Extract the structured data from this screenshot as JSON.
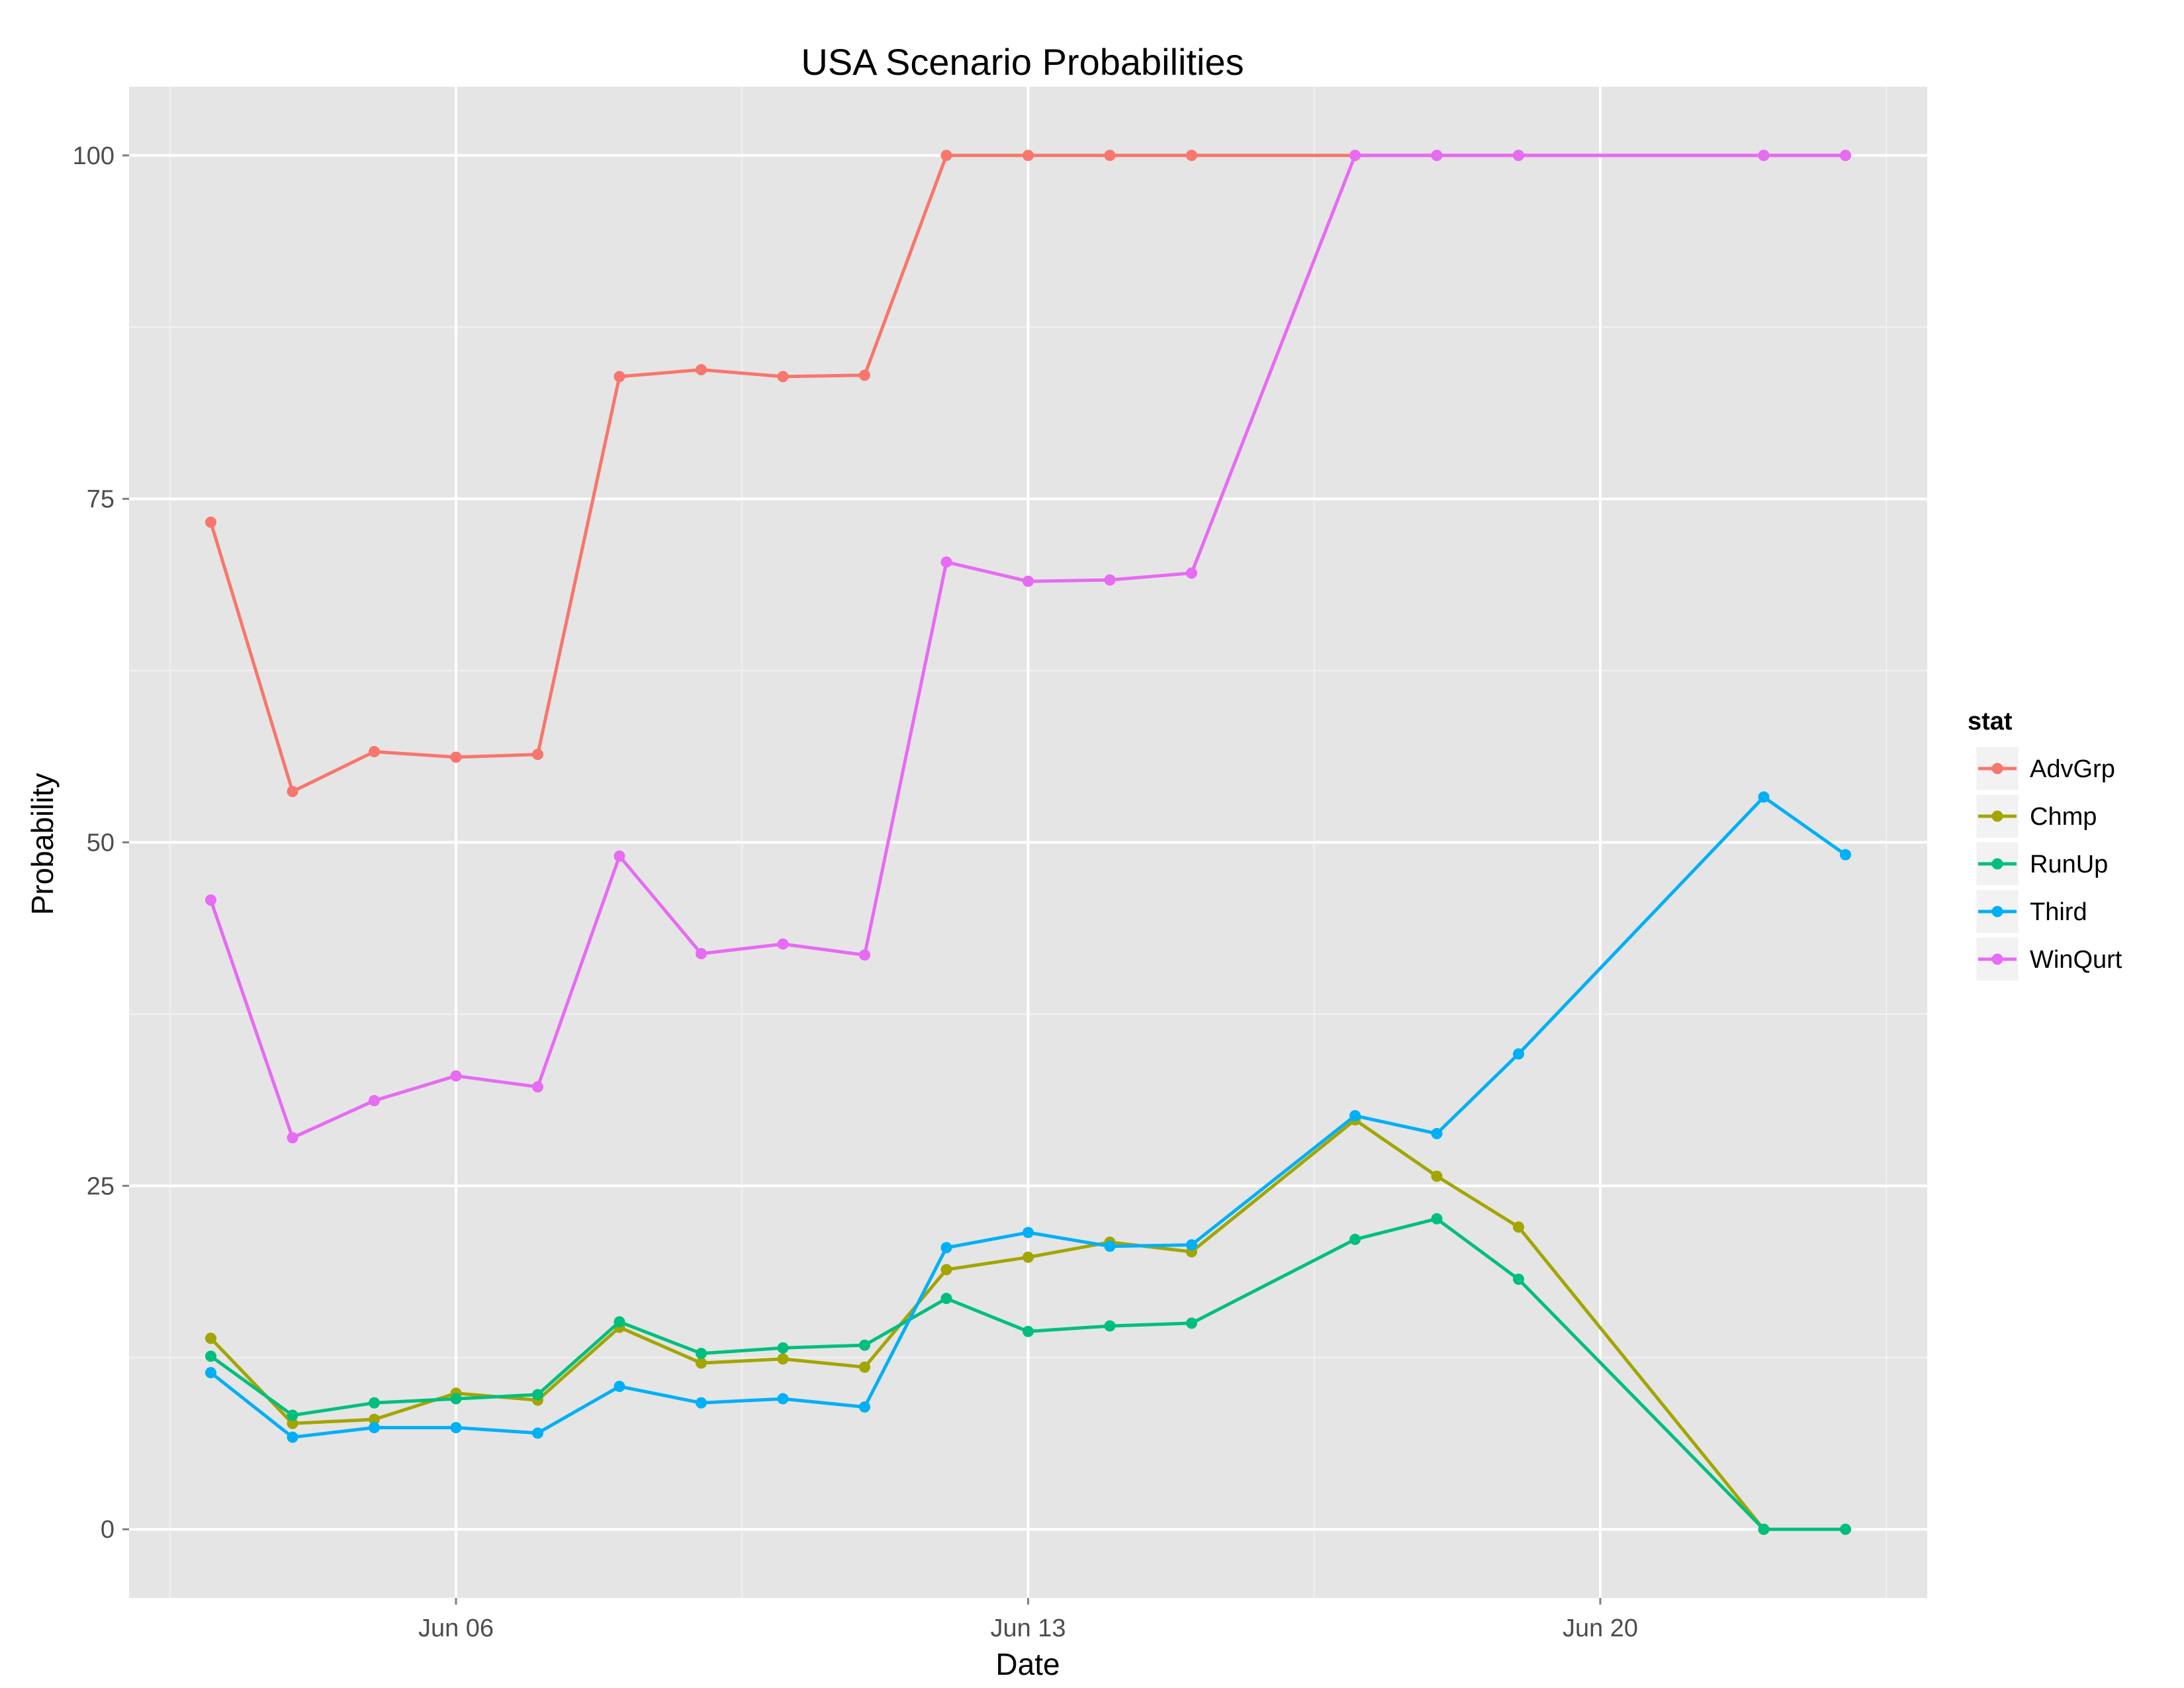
{
  "chart_data": {
    "type": "line",
    "title": "USA Scenario Probabilities",
    "xlabel": "Date",
    "ylabel": "Probability",
    "x_ticks": [
      "Jun 06",
      "Jun 13",
      "Jun 20"
    ],
    "x_tick_dates": [
      "2014-06-06",
      "2014-06-13",
      "2014-06-20"
    ],
    "xlim": [
      "2014-06-02",
      "2014-06-24"
    ],
    "y_ticks": [
      "0",
      "25",
      "50",
      "75",
      "100"
    ],
    "ylim": [
      -5,
      105
    ],
    "grid": true,
    "points_marked": true,
    "legend_title": "stat",
    "legend_position": "right",
    "series": [
      {
        "name": "AdvGrp",
        "color": "#F8766D",
        "x": [
          "2014-06-03",
          "2014-06-04",
          "2014-06-05",
          "2014-06-06",
          "2014-06-07",
          "2014-06-08",
          "2014-06-09",
          "2014-06-10",
          "2014-06-11",
          "2014-06-12",
          "2014-06-13",
          "2014-06-14",
          "2014-06-15",
          "2014-06-17",
          "2014-06-18",
          "2014-06-19",
          "2014-06-22",
          "2014-06-23"
        ],
        "y": [
          73.3,
          53.7,
          56.6,
          56.2,
          56.4,
          83.9,
          84.4,
          83.9,
          84.0,
          100,
          100,
          100,
          100,
          100,
          100,
          100,
          100,
          100
        ]
      },
      {
        "name": "Chmp",
        "color": "#A3A500",
        "x": [
          "2014-06-03",
          "2014-06-04",
          "2014-06-05",
          "2014-06-06",
          "2014-06-07",
          "2014-06-08",
          "2014-06-09",
          "2014-06-10",
          "2014-06-11",
          "2014-06-12",
          "2014-06-13",
          "2014-06-14",
          "2014-06-15",
          "2014-06-17",
          "2014-06-18",
          "2014-06-19",
          "2014-06-22"
        ],
        "y": [
          13.9,
          7.7,
          8.0,
          9.9,
          9.4,
          14.7,
          12.1,
          12.4,
          11.8,
          18.9,
          19.8,
          20.9,
          20.2,
          29.8,
          25.7,
          22.0,
          0
        ]
      },
      {
        "name": "RunUp",
        "color": "#00BF7D",
        "x": [
          "2014-06-03",
          "2014-06-04",
          "2014-06-05",
          "2014-06-06",
          "2014-06-07",
          "2014-06-08",
          "2014-06-09",
          "2014-06-10",
          "2014-06-11",
          "2014-06-12",
          "2014-06-13",
          "2014-06-14",
          "2014-06-15",
          "2014-06-17",
          "2014-06-18",
          "2014-06-19",
          "2014-06-22",
          "2014-06-23"
        ],
        "y": [
          12.6,
          8.3,
          9.2,
          9.5,
          9.8,
          15.1,
          12.8,
          13.2,
          13.4,
          16.8,
          14.4,
          14.8,
          15.0,
          21.1,
          22.6,
          18.2,
          0,
          0
        ]
      },
      {
        "name": "Third",
        "color": "#00B0F6",
        "x": [
          "2014-06-03",
          "2014-06-04",
          "2014-06-05",
          "2014-06-06",
          "2014-06-07",
          "2014-06-08",
          "2014-06-09",
          "2014-06-10",
          "2014-06-11",
          "2014-06-12",
          "2014-06-13",
          "2014-06-14",
          "2014-06-15",
          "2014-06-17",
          "2014-06-18",
          "2014-06-19",
          "2014-06-22",
          "2014-06-23"
        ],
        "y": [
          11.4,
          6.7,
          7.4,
          7.4,
          7.0,
          10.4,
          9.2,
          9.5,
          8.9,
          20.5,
          21.6,
          20.6,
          20.7,
          30.1,
          28.8,
          34.6,
          53.3,
          49.1
        ]
      },
      {
        "name": "WinQurt",
        "color": "#E76BF3",
        "x": [
          "2014-06-03",
          "2014-06-04",
          "2014-06-05",
          "2014-06-06",
          "2014-06-07",
          "2014-06-08",
          "2014-06-09",
          "2014-06-10",
          "2014-06-11",
          "2014-06-12",
          "2014-06-13",
          "2014-06-14",
          "2014-06-15",
          "2014-06-17",
          "2014-06-18",
          "2014-06-19",
          "2014-06-22",
          "2014-06-23"
        ],
        "y": [
          45.8,
          28.5,
          31.2,
          33.0,
          32.2,
          49.0,
          41.9,
          42.6,
          41.8,
          70.4,
          69.0,
          69.1,
          69.6,
          100,
          100,
          100,
          100,
          100
        ]
      }
    ]
  }
}
